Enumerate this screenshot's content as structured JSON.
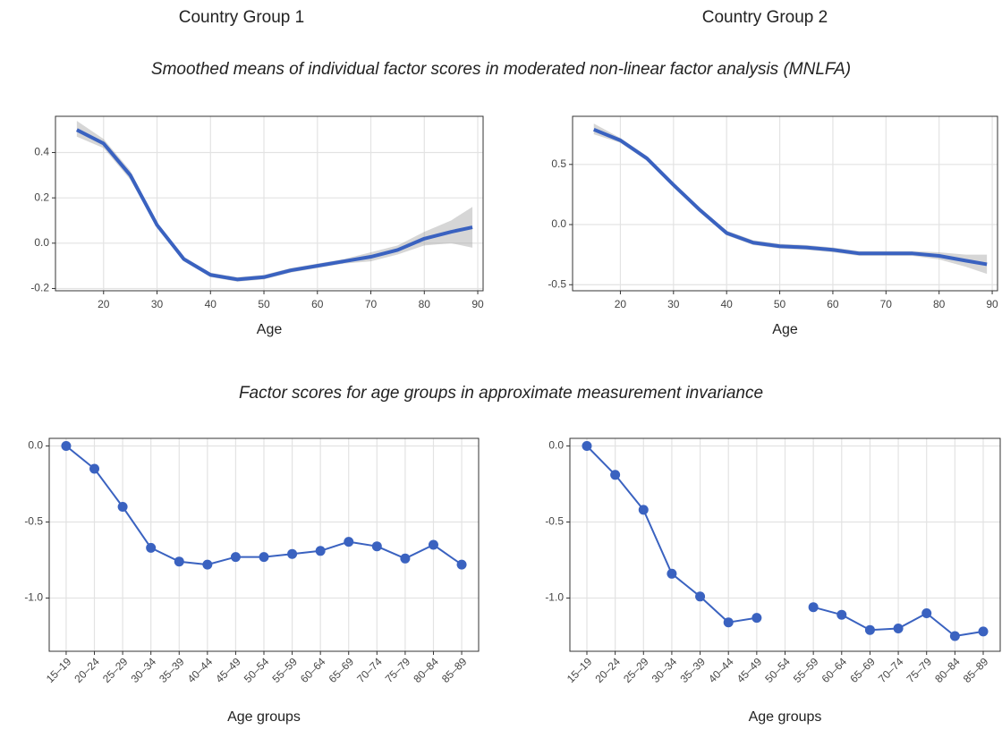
{
  "column_titles": [
    "Country Group 1",
    "Country Group 2"
  ],
  "section_titles": [
    "Smoothed means of individual factor scores in moderated non-linear factor analysis (MNLFA)",
    "Factor scores for age groups in approximate measurement invariance"
  ],
  "chart_data": [
    {
      "type": "line",
      "x_label": "Age",
      "xlim": [
        11,
        91
      ],
      "xticks": [
        20,
        30,
        40,
        50,
        60,
        70,
        80,
        90
      ],
      "ylim": [
        -0.21,
        0.56
      ],
      "yticks": [
        -0.2,
        {
          "value": 0,
          "label": "0.0"
        },
        0.2,
        0.4
      ],
      "grid": true,
      "x": [
        15,
        20,
        25,
        30,
        35,
        40,
        45,
        50,
        55,
        60,
        65,
        70,
        75,
        80,
        85,
        89
      ],
      "series": [
        {
          "color": "#3a62c0",
          "values": [
            0.5,
            0.44,
            0.3,
            0.08,
            -0.07,
            -0.14,
            -0.16,
            -0.15,
            -0.12,
            -0.1,
            -0.08,
            -0.06,
            -0.03,
            0.02,
            0.05,
            0.07
          ],
          "lower": [
            0.47,
            0.42,
            0.28,
            0.07,
            -0.08,
            -0.15,
            -0.17,
            -0.16,
            -0.13,
            -0.11,
            -0.09,
            -0.08,
            -0.05,
            -0.01,
            0.0,
            -0.02
          ],
          "upper": [
            0.54,
            0.46,
            0.32,
            0.09,
            -0.06,
            -0.13,
            -0.15,
            -0.14,
            -0.11,
            -0.09,
            -0.07,
            -0.04,
            -0.01,
            0.05,
            0.1,
            0.16
          ]
        }
      ]
    },
    {
      "type": "line",
      "x_label": "Age",
      "xlim": [
        11,
        91
      ],
      "xticks": [
        20,
        30,
        40,
        50,
        60,
        70,
        80,
        90
      ],
      "ylim": [
        -0.55,
        0.9
      ],
      "yticks": [
        -0.5,
        {
          "value": 0,
          "label": "0.0"
        },
        0.5
      ],
      "grid": true,
      "x": [
        15,
        20,
        25,
        30,
        35,
        40,
        45,
        50,
        55,
        60,
        65,
        70,
        75,
        80,
        85,
        89
      ],
      "series": [
        {
          "color": "#3a62c0",
          "values": [
            0.79,
            0.7,
            0.55,
            0.33,
            0.12,
            -0.07,
            -0.15,
            -0.18,
            -0.19,
            -0.21,
            -0.24,
            -0.24,
            -0.24,
            -0.26,
            -0.3,
            -0.33
          ],
          "lower": [
            0.75,
            0.68,
            0.53,
            0.31,
            0.1,
            -0.09,
            -0.17,
            -0.2,
            -0.21,
            -0.23,
            -0.26,
            -0.26,
            -0.26,
            -0.29,
            -0.35,
            -0.41
          ],
          "upper": [
            0.84,
            0.72,
            0.57,
            0.35,
            0.14,
            -0.05,
            -0.13,
            -0.16,
            -0.17,
            -0.19,
            -0.22,
            -0.22,
            -0.22,
            -0.23,
            -0.25,
            -0.25
          ]
        }
      ]
    },
    {
      "type": "line",
      "x_label": "Age groups",
      "categories": [
        "15–19",
        "20–24",
        "25–29",
        "30–34",
        "35–39",
        "40–44",
        "45–49",
        "50–54",
        "55–59",
        "60–64",
        "65–69",
        "70–74",
        "75–79",
        "80–84",
        "85–89"
      ],
      "ylim": [
        -1.35,
        0.05
      ],
      "yticks": [
        {
          "value": -1,
          "label": "-1.0"
        },
        -0.5,
        {
          "value": 0,
          "label": "0.0"
        }
      ],
      "grid": true,
      "series": [
        {
          "color": "#3a62c0",
          "values": [
            0,
            -0.15,
            -0.4,
            -0.67,
            -0.76,
            -0.78,
            -0.73,
            -0.73,
            -0.71,
            -0.69,
            -0.63,
            -0.66,
            -0.74,
            -0.65,
            -0.78
          ]
        }
      ]
    },
    {
      "type": "line",
      "x_label": "Age groups",
      "categories": [
        "15–19",
        "20–24",
        "25–29",
        "30–34",
        "35–39",
        "40–44",
        "45–49",
        "50–54",
        "55–59",
        "60–64",
        "65–69",
        "70–74",
        "75–79",
        "80–84",
        "85–89"
      ],
      "ylim": [
        -1.35,
        0.05
      ],
      "yticks": [
        {
          "value": -1,
          "label": "-1.0"
        },
        -0.5,
        {
          "value": 0,
          "label": "0.0"
        }
      ],
      "grid": true,
      "series": [
        {
          "color": "#3a62c0",
          "values": [
            0,
            -0.19,
            -0.42,
            -0.84,
            -0.99,
            -1.16,
            -1.13,
            null,
            -1.06,
            -1.11,
            -1.21,
            -1.2,
            -1.1,
            -1.25,
            -1.22
          ]
        }
      ]
    }
  ]
}
